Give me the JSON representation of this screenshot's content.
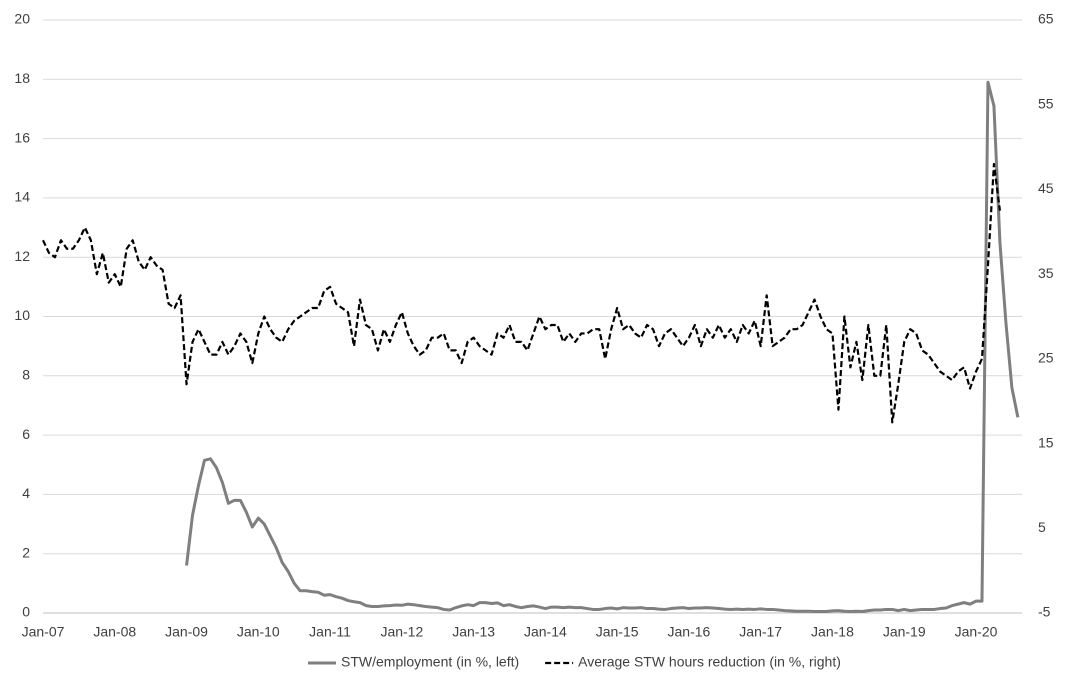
{
  "chart_data": {
    "type": "line",
    "categories": [
      "Jan-07",
      null,
      null,
      null,
      null,
      null,
      null,
      null,
      null,
      null,
      null,
      null,
      "Jan-08",
      null,
      null,
      null,
      null,
      null,
      null,
      null,
      null,
      null,
      null,
      null,
      "Jan-09",
      null,
      null,
      null,
      null,
      null,
      null,
      null,
      null,
      null,
      null,
      null,
      "Jan-10",
      null,
      null,
      null,
      null,
      null,
      null,
      null,
      null,
      null,
      null,
      null,
      "Jan-11",
      null,
      null,
      null,
      null,
      null,
      null,
      null,
      null,
      null,
      null,
      null,
      "Jan-12",
      null,
      null,
      null,
      null,
      null,
      null,
      null,
      null,
      null,
      null,
      null,
      "Jan-13",
      null,
      null,
      null,
      null,
      null,
      null,
      null,
      null,
      null,
      null,
      null,
      "Jan-14",
      null,
      null,
      null,
      null,
      null,
      null,
      null,
      null,
      null,
      null,
      null,
      "Jan-15",
      null,
      null,
      null,
      null,
      null,
      null,
      null,
      null,
      null,
      null,
      null,
      "Jan-16",
      null,
      null,
      null,
      null,
      null,
      null,
      null,
      null,
      null,
      null,
      null,
      "Jan-17",
      null,
      null,
      null,
      null,
      null,
      null,
      null,
      null,
      null,
      null,
      null,
      "Jan-18",
      null,
      null,
      null,
      null,
      null,
      null,
      null,
      null,
      null,
      null,
      null,
      "Jan-19",
      null,
      null,
      null,
      null,
      null,
      null,
      null,
      null,
      null,
      null,
      null,
      "Jan-20",
      null,
      null,
      null,
      null,
      null,
      null,
      null
    ],
    "series": [
      {
        "name": "STW/employment (in %, left)",
        "color": "#7f7f7f",
        "style": "solid",
        "axis": "y",
        "values": [
          null,
          null,
          null,
          null,
          null,
          null,
          null,
          null,
          null,
          null,
          null,
          null,
          null,
          null,
          null,
          null,
          null,
          null,
          null,
          null,
          null,
          null,
          null,
          null,
          1.6,
          3.3,
          4.3,
          5.15,
          5.2,
          4.9,
          4.4,
          3.7,
          3.8,
          3.8,
          3.4,
          2.9,
          3.2,
          3.0,
          2.6,
          2.2,
          1.7,
          1.4,
          1.0,
          0.75,
          0.75,
          0.72,
          0.7,
          0.6,
          0.62,
          0.55,
          0.5,
          0.42,
          0.38,
          0.35,
          0.25,
          0.22,
          0.22,
          0.24,
          0.25,
          0.27,
          0.26,
          0.3,
          0.28,
          0.25,
          0.22,
          0.2,
          0.18,
          0.12,
          0.1,
          0.18,
          0.24,
          0.28,
          0.25,
          0.35,
          0.35,
          0.32,
          0.34,
          0.25,
          0.28,
          0.22,
          0.18,
          0.22,
          0.24,
          0.2,
          0.15,
          0.2,
          0.2,
          0.18,
          0.2,
          0.18,
          0.18,
          0.15,
          0.12,
          0.12,
          0.15,
          0.17,
          0.14,
          0.18,
          0.17,
          0.17,
          0.18,
          0.15,
          0.15,
          0.13,
          0.12,
          0.15,
          0.17,
          0.18,
          0.15,
          0.17,
          0.17,
          0.18,
          0.17,
          0.15,
          0.13,
          0.12,
          0.13,
          0.12,
          0.13,
          0.12,
          0.14,
          0.12,
          0.12,
          0.1,
          0.08,
          0.07,
          0.06,
          0.06,
          0.06,
          0.05,
          0.05,
          0.05,
          0.07,
          0.08,
          0.06,
          0.05,
          0.06,
          0.05,
          0.08,
          0.1,
          0.1,
          0.12,
          0.12,
          0.08,
          0.12,
          0.08,
          0.1,
          0.12,
          0.12,
          0.12,
          0.15,
          0.17,
          0.25,
          0.3,
          0.35,
          0.3,
          0.4,
          0.4,
          17.9,
          17.1,
          12.5,
          9.8,
          7.6,
          6.6
        ]
      },
      {
        "name": "Average STW hours reduction (in %, right)",
        "color": "#000000",
        "style": "dashed",
        "axis": "y2",
        "values": [
          39,
          37.5,
          37,
          39,
          38,
          38,
          39,
          40.5,
          39,
          35,
          37.5,
          34,
          35,
          33.5,
          38,
          39,
          36.5,
          35.5,
          37,
          36,
          35.5,
          31.5,
          31,
          32.5,
          22,
          27,
          28.5,
          27,
          25.5,
          25.5,
          27,
          25.5,
          26.5,
          28,
          27,
          24.5,
          28,
          30,
          28.5,
          27.5,
          27,
          28.5,
          29.5,
          30,
          30.5,
          31,
          31,
          33,
          33.5,
          31.5,
          31,
          30.5,
          26.5,
          32,
          29,
          28.5,
          26,
          28.5,
          27,
          29,
          30.5,
          28,
          26.5,
          25.5,
          26,
          27.5,
          27.5,
          28,
          26,
          26,
          24.5,
          27,
          27.5,
          26.5,
          26,
          25.5,
          28,
          27.5,
          29,
          27,
          27,
          26,
          28,
          30,
          28.5,
          29,
          29,
          27,
          28,
          27,
          28,
          28,
          28.5,
          28.5,
          25,
          28.5,
          31,
          28.5,
          29,
          28,
          27.5,
          29,
          28.5,
          26.5,
          28,
          28.5,
          27.5,
          26.5,
          27.5,
          29,
          26.5,
          28.5,
          27.5,
          29,
          27.5,
          28.5,
          27,
          29,
          28,
          29.5,
          26.5,
          32.5,
          26.5,
          27,
          27.5,
          28.5,
          28.5,
          29,
          30.5,
          32,
          30,
          28.5,
          28,
          19,
          30,
          24,
          27,
          22.5,
          29,
          23,
          23,
          29,
          17.5,
          22,
          27,
          28.5,
          28,
          26,
          25.5,
          24.5,
          23.5,
          23,
          22.5,
          23.5,
          24,
          21.5,
          23.5,
          25,
          36,
          48,
          42.5,
          null,
          null,
          null
        ]
      }
    ],
    "ylim": [
      0,
      20
    ],
    "yticks": [
      0,
      2,
      4,
      6,
      8,
      10,
      12,
      14,
      16,
      18,
      20
    ],
    "y2lim": [
      -5,
      65
    ],
    "y2ticks": [
      -5,
      5,
      15,
      25,
      35,
      45,
      55,
      65
    ],
    "grid": true,
    "legend": "bottom"
  }
}
